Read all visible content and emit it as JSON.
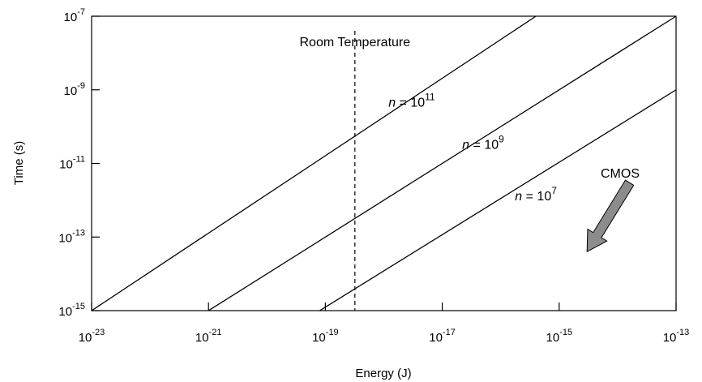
{
  "chart_data": {
    "type": "line",
    "title": "",
    "xlabel": "Energy (J)",
    "ylabel": "Time (s)",
    "x_scale": "log",
    "y_scale": "log",
    "xlim": [
      1e-23,
      1e-13
    ],
    "ylim": [
      1e-15,
      1e-07
    ],
    "grid": false,
    "x_ticks": [
      {
        "value": 1e-23,
        "base": "10",
        "exp": "-23"
      },
      {
        "value": 1e-21,
        "base": "10",
        "exp": "-21"
      },
      {
        "value": 1e-19,
        "base": "10",
        "exp": "-19"
      },
      {
        "value": 1e-17,
        "base": "10",
        "exp": "-17"
      },
      {
        "value": 1e-15,
        "base": "10",
        "exp": "-15"
      },
      {
        "value": 1e-13,
        "base": "10",
        "exp": "-13"
      }
    ],
    "y_ticks": [
      {
        "value": 1e-15,
        "base": "10",
        "exp": "-15"
      },
      {
        "value": 1e-13,
        "base": "10",
        "exp": "-13"
      },
      {
        "value": 1e-11,
        "base": "10",
        "exp": "-11"
      },
      {
        "value": 1e-09,
        "base": "10",
        "exp": "-9"
      },
      {
        "value": 1e-07,
        "base": "10",
        "exp": "-7"
      }
    ],
    "series": [
      {
        "name": "n = 10^11",
        "label_prefix": "n",
        "label_mid": " = 10",
        "label_exp": "11",
        "label_at": [
          3e-18,
          3.5e-10
        ],
        "points": [
          [
            1e-23,
            1e-15
          ],
          [
            4e-16,
            1e-07
          ]
        ]
      },
      {
        "name": "n = 10^9",
        "label_prefix": "n",
        "label_mid": " = 10",
        "label_exp": "9",
        "label_at": [
          5e-17,
          2.5e-11
        ],
        "points": [
          [
            1e-21,
            1e-15
          ],
          [
            1e-13,
            1e-07
          ]
        ]
      },
      {
        "name": "n = 10^7",
        "label_prefix": "n",
        "label_mid": " = 10",
        "label_exp": "7",
        "label_at": [
          4e-16,
          1e-12
        ],
        "points": [
          [
            8e-20,
            1e-15
          ],
          [
            1e-13,
            1e-09
          ]
        ]
      }
    ],
    "annotations": [
      {
        "type": "vline",
        "x": 3.2e-19,
        "style": "dashed",
        "label": "Room  Temperature"
      },
      {
        "type": "text",
        "label": "CMOS"
      },
      {
        "type": "arrow",
        "direction": "down-left",
        "color": "#8c8c8c",
        "from": [
          1.6e-14,
          3e-12
        ],
        "to": [
          3e-15,
          4e-14
        ]
      }
    ]
  }
}
